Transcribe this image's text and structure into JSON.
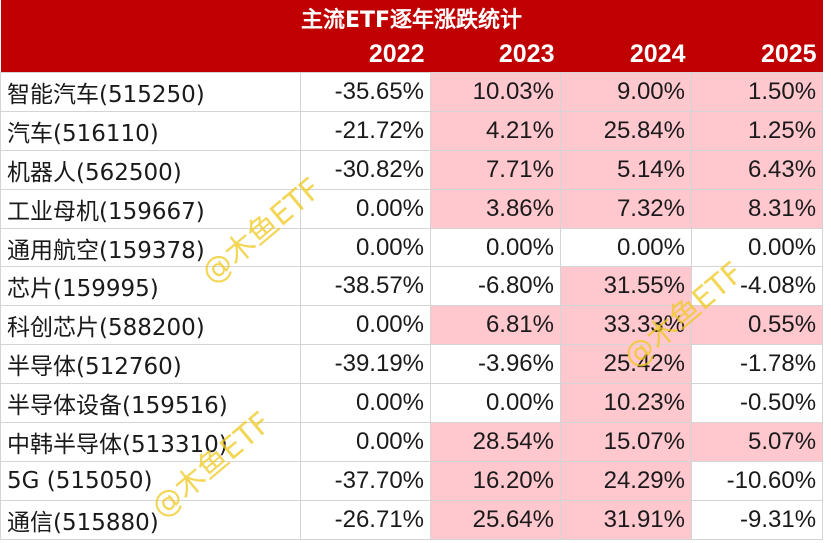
{
  "title": "主流ETF逐年涨跌统计",
  "years": [
    "2022",
    "2023",
    "2024",
    "2025"
  ],
  "rows": [
    {
      "name": "智能汽车(515250)",
      "values": [
        "-35.65%",
        "10.03%",
        "9.00%",
        "1.50%"
      ]
    },
    {
      "name": "汽车(516110)",
      "values": [
        "-21.72%",
        "4.21%",
        "25.84%",
        "1.25%"
      ]
    },
    {
      "name": "机器人(562500)",
      "values": [
        "-30.82%",
        "7.71%",
        "5.14%",
        "6.43%"
      ]
    },
    {
      "name": "工业母机(159667)",
      "values": [
        "0.00%",
        "3.86%",
        "7.32%",
        "8.31%"
      ]
    },
    {
      "name": "通用航空(159378)",
      "values": [
        "0.00%",
        "0.00%",
        "0.00%",
        "0.00%"
      ]
    },
    {
      "name": "芯片(159995)",
      "values": [
        "-38.57%",
        "-6.80%",
        "31.55%",
        "-4.08%"
      ]
    },
    {
      "name": "科创芯片(588200)",
      "values": [
        "0.00%",
        "6.81%",
        "33.33%",
        "0.55%"
      ]
    },
    {
      "name": "半导体(512760)",
      "values": [
        "-39.19%",
        "-3.96%",
        "25.42%",
        "-1.78%"
      ]
    },
    {
      "name": "半导体设备(159516)",
      "values": [
        "0.00%",
        "0.00%",
        "10.23%",
        "-0.50%"
      ]
    },
    {
      "name": "中韩半导体(513310)",
      "values": [
        "0.00%",
        "28.54%",
        "15.07%",
        "5.07%"
      ]
    },
    {
      "name": "5G (515050)",
      "values": [
        "-37.70%",
        "16.20%",
        "24.29%",
        "-10.60%"
      ]
    },
    {
      "name": "通信(515880)",
      "values": [
        "-26.71%",
        "25.64%",
        "31.91%",
        "-9.31%"
      ]
    }
  ],
  "highlight": {
    "positive_bg": "#ffc7ce",
    "header_bg": "#c00000"
  },
  "watermark": "@木鱼ETF"
}
